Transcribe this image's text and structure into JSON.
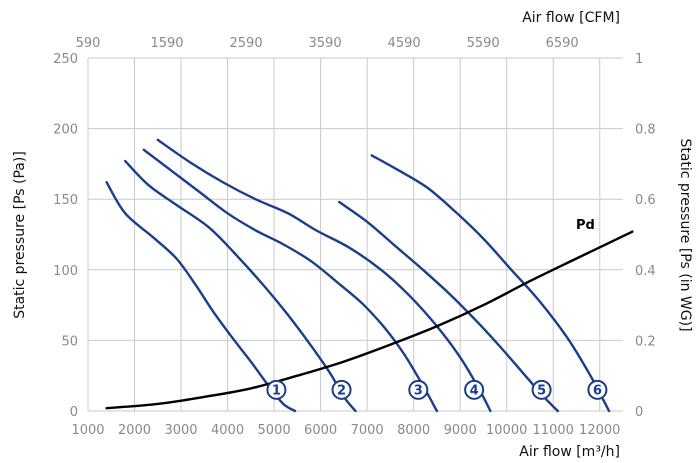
{
  "chart_data": {
    "type": "line",
    "xlabel": "Air flow [m³/h]",
    "x2label": "Air flow [CFM]",
    "ylabel": "Static pressure [Ps (Pa)]",
    "y2label": "Static pressure [Ps (in WG)]",
    "xlim": [
      1000,
      12500
    ],
    "ylim": [
      0,
      250
    ],
    "x2lim": [
      590,
      7360
    ],
    "y2lim": [
      0,
      1.0
    ],
    "xticks": [
      1000,
      2000,
      3000,
      4000,
      5000,
      6000,
      7000,
      8000,
      9000,
      10000,
      11000,
      12000
    ],
    "yticks": [
      0,
      50,
      100,
      150,
      200,
      250
    ],
    "x2ticks": [
      590,
      1590,
      2590,
      3590,
      4590,
      5590,
      6590
    ],
    "y2ticks": [
      0,
      0.2,
      0.4,
      0.6,
      0.8,
      1
    ],
    "grid": true,
    "series": [
      {
        "name": "1",
        "x": [
          1400,
          1800,
          2400,
          2900,
          3300,
          3700,
          4100,
          4500,
          4900,
          5200,
          5450
        ],
        "y": [
          162,
          140,
          123,
          108,
          90,
          70,
          52,
          35,
          17,
          5,
          0
        ],
        "color": "#1a3e8c"
      },
      {
        "name": "2",
        "x": [
          1800,
          2300,
          2900,
          3600,
          4200,
          4800,
          5300,
          5800,
          6200,
          6500,
          6750
        ],
        "y": [
          177,
          160,
          146,
          130,
          110,
          88,
          68,
          46,
          27,
          10,
          0
        ],
        "color": "#1a3e8c"
      },
      {
        "name": "3",
        "x": [
          2200,
          2800,
          3400,
          4000,
          4600,
          5200,
          5800,
          6400,
          6900,
          7400,
          7800,
          8200,
          8500
        ],
        "y": [
          185,
          170,
          155,
          140,
          128,
          118,
          106,
          90,
          76,
          58,
          40,
          18,
          0
        ],
        "color": "#1a3e8c"
      },
      {
        "name": "4",
        "x": [
          2500,
          3200,
          3900,
          4600,
          5300,
          5900,
          6600,
          7300,
          7900,
          8500,
          9000,
          9400,
          9650
        ],
        "y": [
          192,
          176,
          162,
          150,
          140,
          128,
          116,
          100,
          82,
          60,
          38,
          16,
          0
        ],
        "color": "#1a3e8c"
      },
      {
        "name": "5",
        "x": [
          6400,
          7000,
          7600,
          8200,
          8800,
          9400,
          9900,
          10400,
          10800,
          11100
        ],
        "y": [
          148,
          134,
          117,
          100,
          82,
          62,
          44,
          25,
          10,
          0
        ],
        "color": "#1a3e8c"
      },
      {
        "name": "6",
        "x": [
          7100,
          7700,
          8300,
          8900,
          9500,
          10100,
          10700,
          11300,
          11800,
          12200
        ],
        "y": [
          181,
          170,
          158,
          141,
          122,
          100,
          78,
          52,
          25,
          0
        ],
        "color": "#1a3e8c"
      },
      {
        "name": "Pd",
        "x": [
          1400,
          2500,
          3500,
          4500,
          5500,
          6500,
          7500,
          8500,
          9500,
          10500,
          11500,
          12700
        ],
        "y": [
          2,
          5,
          10,
          16,
          25,
          35,
          47,
          60,
          75,
          92,
          108,
          127
        ],
        "color": "#000000"
      }
    ],
    "markers": [
      {
        "label": "1",
        "x": 5050,
        "y": 15
      },
      {
        "label": "2",
        "x": 6450,
        "y": 15
      },
      {
        "label": "3",
        "x": 8100,
        "y": 15
      },
      {
        "label": "4",
        "x": 9300,
        "y": 15
      },
      {
        "label": "5",
        "x": 10750,
        "y": 15
      },
      {
        "label": "6",
        "x": 11950,
        "y": 15
      }
    ],
    "pd_label": "Pd"
  }
}
